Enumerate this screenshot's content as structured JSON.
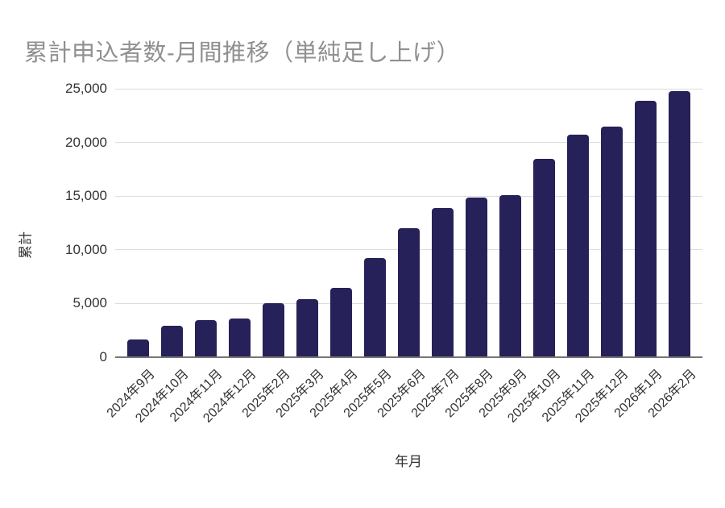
{
  "chart_data": {
    "type": "bar",
    "title": "累計申込者数-月間推移（単純足し上げ）",
    "xlabel": "年月",
    "ylabel": "累計",
    "categories": [
      "2024年9月",
      "2024年10月",
      "2024年11月",
      "2024年12月",
      "2025年2月",
      "2025年3月",
      "2025年4月",
      "2025年5月",
      "2025年6月",
      "2025年7月",
      "2025年8月",
      "2025年9月",
      "2025年10月",
      "2025年11月",
      "2025年12月",
      "2026年1月",
      "2026年2月"
    ],
    "values": [
      1650,
      2950,
      3450,
      3600,
      5050,
      5400,
      6450,
      9200,
      12000,
      13900,
      14900,
      15100,
      18450,
      20700,
      21450,
      23900,
      24800
    ],
    "ylim": [
      0,
      25000
    ],
    "ytick_step": 5000,
    "ytick_labels": [
      "0",
      "5,000",
      "10,000",
      "15,000",
      "20,000",
      "25,000"
    ],
    "grid": true,
    "legend": "none",
    "colors": {
      "bar": "#262158",
      "title": "#909090",
      "grid": "#dcdcdc",
      "axis_line": "#757575",
      "tick_text": "#333333"
    }
  }
}
